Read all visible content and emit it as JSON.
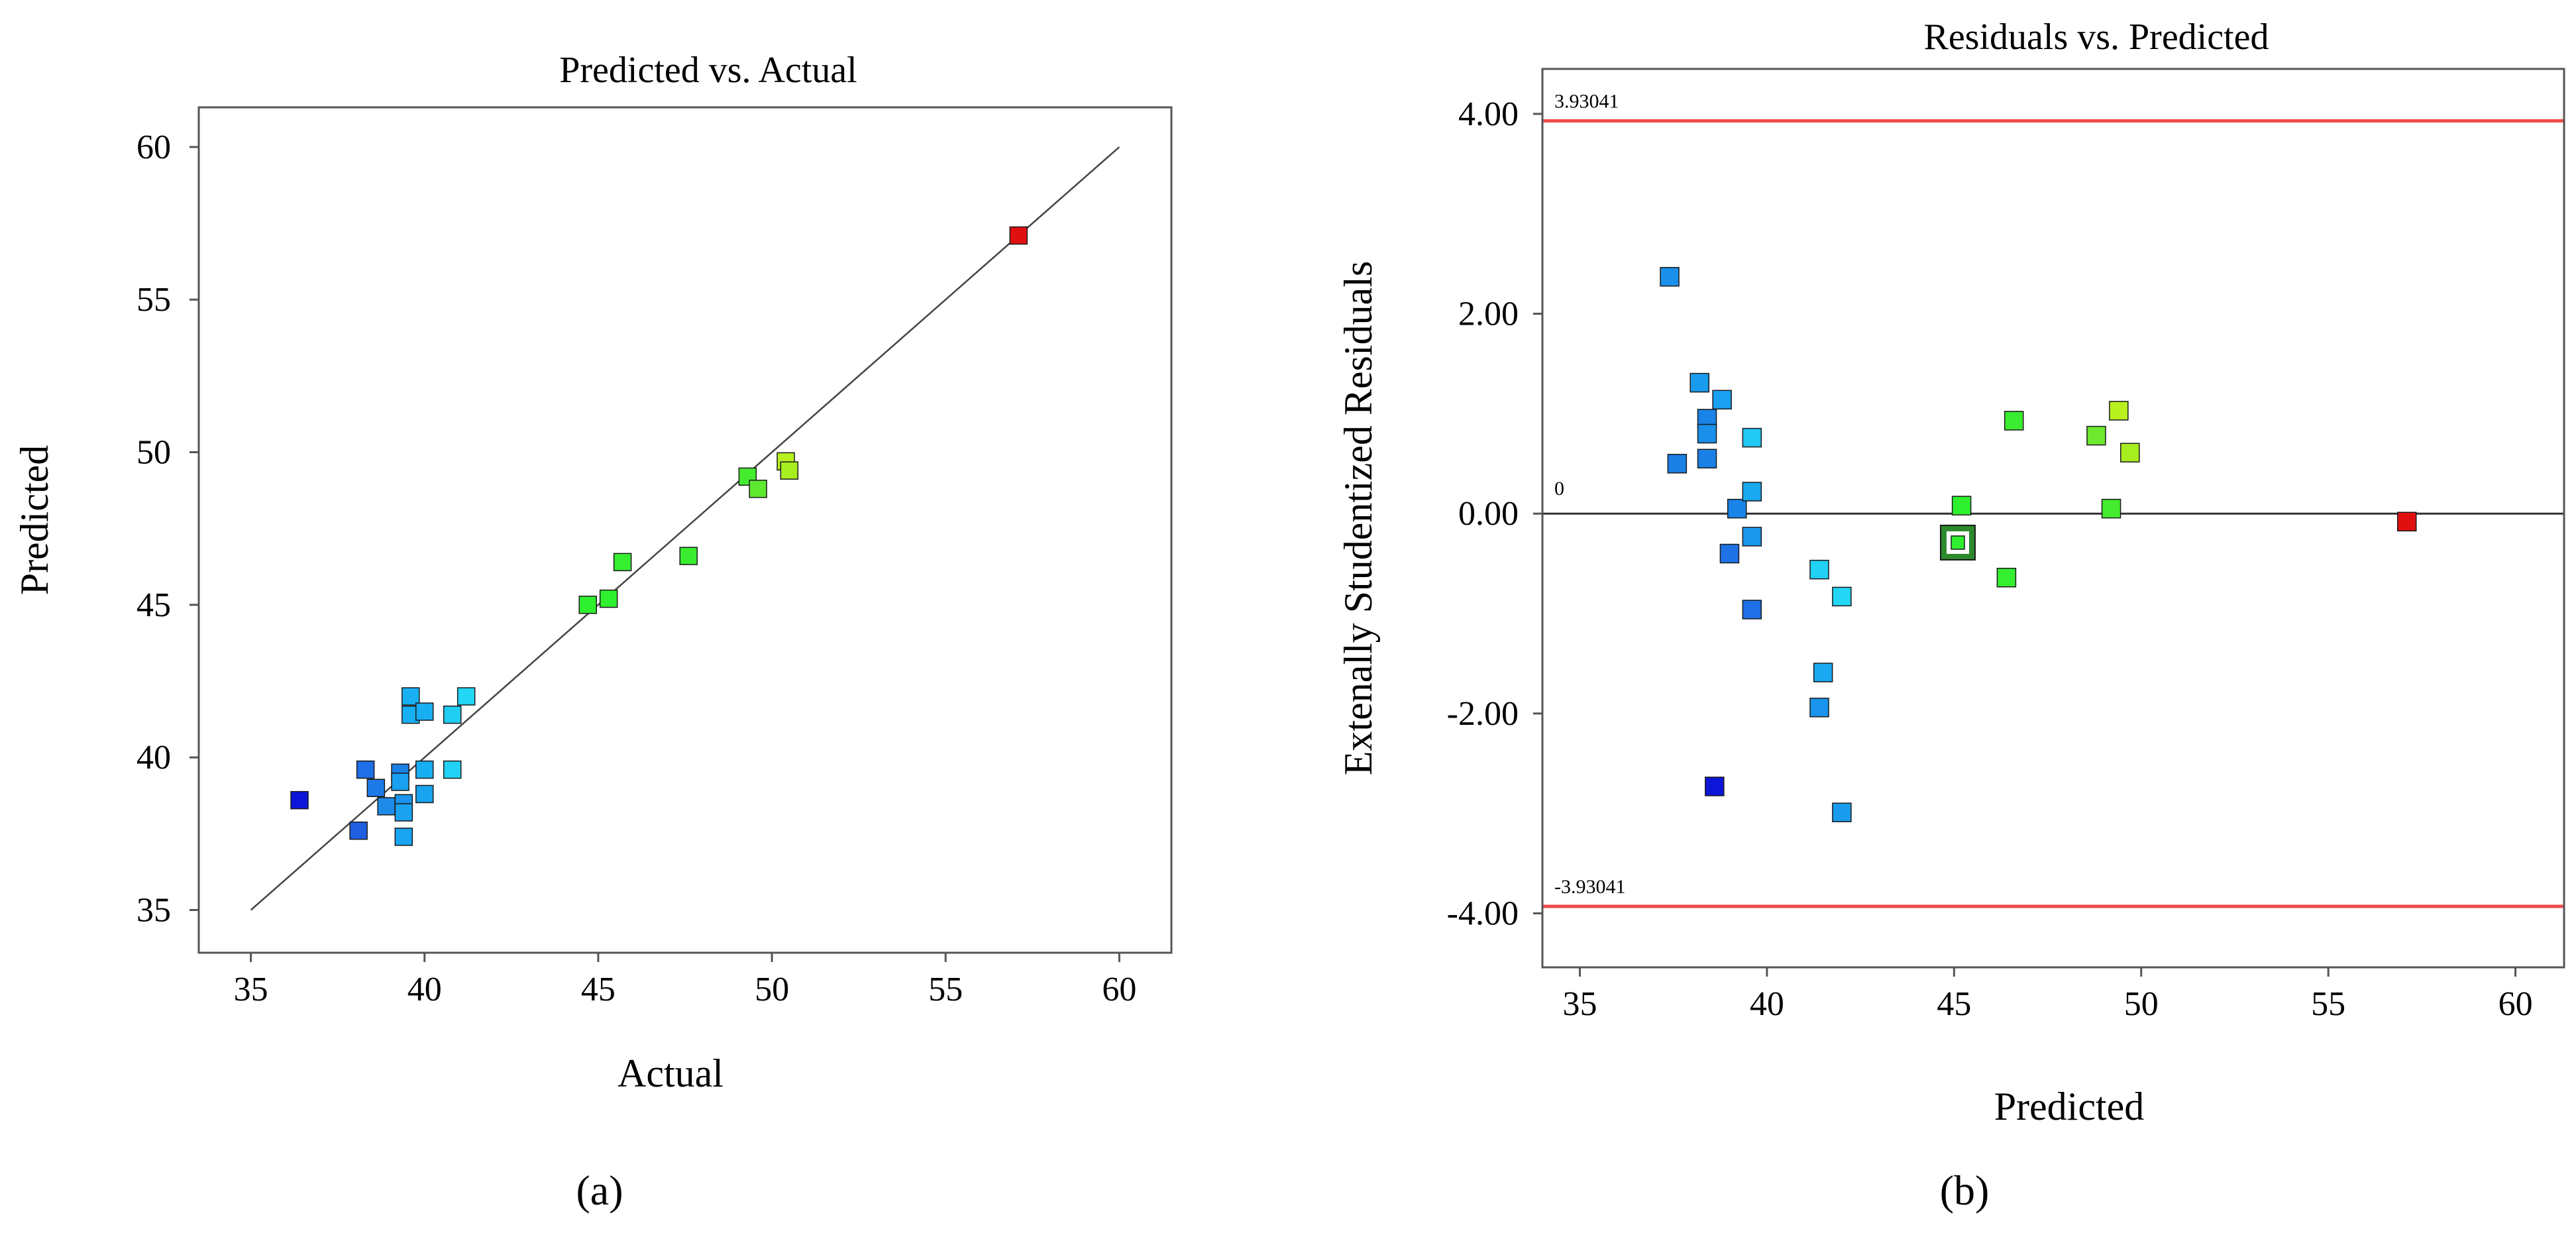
{
  "chart_data": [
    {
      "type": "scatter",
      "panel_label": "(a)",
      "title": "Predicted vs. Actual",
      "xlabel": "Actual",
      "ylabel": "Predicted",
      "xlim": [
        33.5,
        61.5
      ],
      "ylim": [
        33.6,
        61.3
      ],
      "xticks": [
        "35",
        "40",
        "45",
        "50",
        "55",
        "60"
      ],
      "yticks": [
        "35",
        "40",
        "45",
        "50",
        "55",
        "60"
      ],
      "reference_line": {
        "from": [
          35,
          35
        ],
        "to": [
          60,
          60
        ]
      },
      "points": [
        {
          "x": 36.4,
          "y": 38.6,
          "color": "#0d16d8"
        },
        {
          "x": 38.1,
          "y": 37.6,
          "color": "#1f5fe0"
        },
        {
          "x": 38.3,
          "y": 39.6,
          "color": "#1f6fe6"
        },
        {
          "x": 38.6,
          "y": 39.0,
          "color": "#1c7ae8"
        },
        {
          "x": 38.9,
          "y": 38.4,
          "color": "#1e8ae8"
        },
        {
          "x": 39.3,
          "y": 39.5,
          "color": "#1a80e6"
        },
        {
          "x": 39.3,
          "y": 39.2,
          "color": "#1aa0f0"
        },
        {
          "x": 39.4,
          "y": 38.5,
          "color": "#1a94ec"
        },
        {
          "x": 39.4,
          "y": 38.2,
          "color": "#1aa2f0"
        },
        {
          "x": 39.4,
          "y": 37.4,
          "color": "#1aa4f0"
        },
        {
          "x": 39.6,
          "y": 42.0,
          "color": "#18b0f2"
        },
        {
          "x": 39.6,
          "y": 41.4,
          "color": "#18b0f2"
        },
        {
          "x": 40.0,
          "y": 41.5,
          "color": "#18aef2"
        },
        {
          "x": 40.0,
          "y": 39.6,
          "color": "#18aef2"
        },
        {
          "x": 40.0,
          "y": 38.8,
          "color": "#1aa4f0"
        },
        {
          "x": 40.8,
          "y": 41.4,
          "color": "#20cef4"
        },
        {
          "x": 40.8,
          "y": 39.6,
          "color": "#22d2f4"
        },
        {
          "x": 41.2,
          "y": 42.0,
          "color": "#22d6f4"
        },
        {
          "x": 44.7,
          "y": 45.0,
          "color": "#2ff02f"
        },
        {
          "x": 45.3,
          "y": 45.2,
          "color": "#2ff02f"
        },
        {
          "x": 45.7,
          "y": 46.4,
          "color": "#35ee30"
        },
        {
          "x": 47.6,
          "y": 46.6,
          "color": "#3aec30"
        },
        {
          "x": 49.3,
          "y": 49.2,
          "color": "#44ec30"
        },
        {
          "x": 49.6,
          "y": 48.8,
          "color": "#5ee830"
        },
        {
          "x": 50.4,
          "y": 49.7,
          "color": "#b8f020"
        },
        {
          "x": 50.5,
          "y": 49.4,
          "color": "#a6ee20"
        },
        {
          "x": 57.1,
          "y": 57.1,
          "color": "#e01010"
        }
      ]
    },
    {
      "type": "scatter",
      "panel_label": "(b)",
      "title": "Residuals vs. Predicted",
      "xlabel": "Predicted",
      "ylabel": "Extenally Studentized Residuals",
      "xlim": [
        34,
        61.3
      ],
      "ylim": [
        -4.54,
        4.45
      ],
      "xticks": [
        "35",
        "40",
        "45",
        "50",
        "55",
        "60"
      ],
      "yticks": [
        "-4.00",
        "-2.00",
        "0.00",
        "2.00",
        "4.00"
      ],
      "upper_limit": {
        "value": 3.93041,
        "label": "3.93041"
      },
      "lower_limit": {
        "value": -3.93041,
        "label": "-3.93041"
      },
      "zero_line": {
        "value": 0,
        "label": "0"
      },
      "highlighted_point_index": 20,
      "points": [
        {
          "x": 37.4,
          "y": 2.37,
          "color": "#1a90ea"
        },
        {
          "x": 37.6,
          "y": 0.5,
          "color": "#1a80e6"
        },
        {
          "x": 38.2,
          "y": 1.31,
          "color": "#1a9cee"
        },
        {
          "x": 38.4,
          "y": 0.95,
          "color": "#1a84e8"
        },
        {
          "x": 38.4,
          "y": 0.8,
          "color": "#1a90ea"
        },
        {
          "x": 38.4,
          "y": 0.55,
          "color": "#1a80e6"
        },
        {
          "x": 38.8,
          "y": 1.14,
          "color": "#1aa0f0"
        },
        {
          "x": 39.0,
          "y": -0.4,
          "color": "#1f72e6"
        },
        {
          "x": 39.2,
          "y": 0.05,
          "color": "#1a84e8"
        },
        {
          "x": 38.6,
          "y": -2.73,
          "color": "#0d16d8"
        },
        {
          "x": 39.6,
          "y": 0.76,
          "color": "#20c8f4"
        },
        {
          "x": 39.6,
          "y": 0.22,
          "color": "#1aa8f0"
        },
        {
          "x": 39.6,
          "y": -0.23,
          "color": "#1a98ee"
        },
        {
          "x": 39.6,
          "y": -0.96,
          "color": "#1f6fe6"
        },
        {
          "x": 41.4,
          "y": -0.56,
          "color": "#22d0f4"
        },
        {
          "x": 41.5,
          "y": -1.59,
          "color": "#1aa8f0"
        },
        {
          "x": 41.4,
          "y": -1.94,
          "color": "#1a94ec"
        },
        {
          "x": 42.0,
          "y": -0.83,
          "color": "#22d6f4"
        },
        {
          "x": 42.0,
          "y": -2.99,
          "color": "#1a9cee"
        },
        {
          "x": 45.2,
          "y": 0.08,
          "color": "#2ff02f"
        },
        {
          "x": 45.1,
          "y": -0.29,
          "color": "#2ff02f"
        },
        {
          "x": 46.4,
          "y": -0.64,
          "color": "#35ee30"
        },
        {
          "x": 46.6,
          "y": 0.93,
          "color": "#3aec30"
        },
        {
          "x": 48.8,
          "y": 0.78,
          "color": "#6ee830"
        },
        {
          "x": 49.2,
          "y": 0.05,
          "color": "#44ec30"
        },
        {
          "x": 49.4,
          "y": 1.03,
          "color": "#b8f020"
        },
        {
          "x": 49.7,
          "y": 0.61,
          "color": "#a6ee20"
        },
        {
          "x": 57.1,
          "y": -0.08,
          "color": "#e01010"
        }
      ]
    }
  ]
}
